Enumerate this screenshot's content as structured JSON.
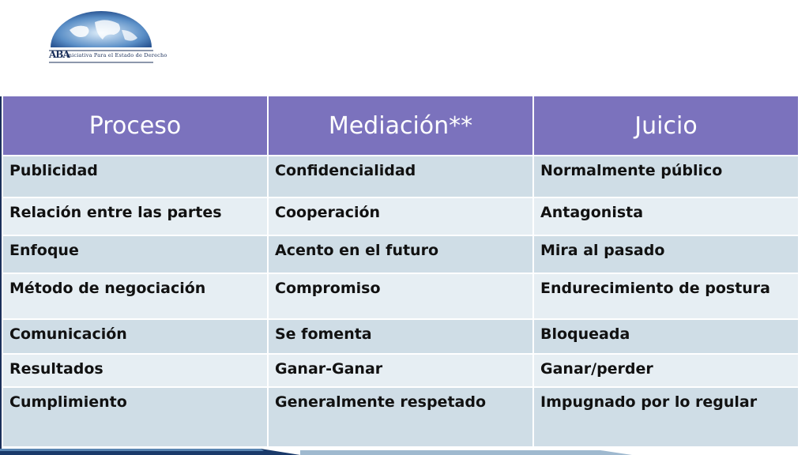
{
  "logo": {
    "abbr": "ABA",
    "caption": "Iniciativa Para el Estado de Derecho"
  },
  "table": {
    "headers": [
      "Proceso",
      "Mediación**",
      "Juicio"
    ],
    "rows": [
      [
        "Publicidad",
        "Confidencialidad",
        "Normalmente público"
      ],
      [
        "Relación entre las partes",
        "Cooperación",
        "Antagonista"
      ],
      [
        "Enfoque",
        "Acento en el futuro",
        "Mira al pasado"
      ],
      [
        "Método de negociación",
        "Compromiso",
        "Endurecimiento de postura"
      ],
      [
        "Comunicación",
        "Se fomenta",
        "Bloqueada"
      ],
      [
        "Resultados",
        "Ganar-Ganar",
        "Ganar/perder"
      ],
      [
        "Cumplimiento",
        "Generalmente respetado",
        "Impugnado por lo regular"
      ]
    ]
  },
  "colors": {
    "header_bg": "#7b72bd",
    "row_dark": "#cfdde6",
    "row_light": "#e6eef3",
    "accent_navy": "#1a2f5a"
  }
}
